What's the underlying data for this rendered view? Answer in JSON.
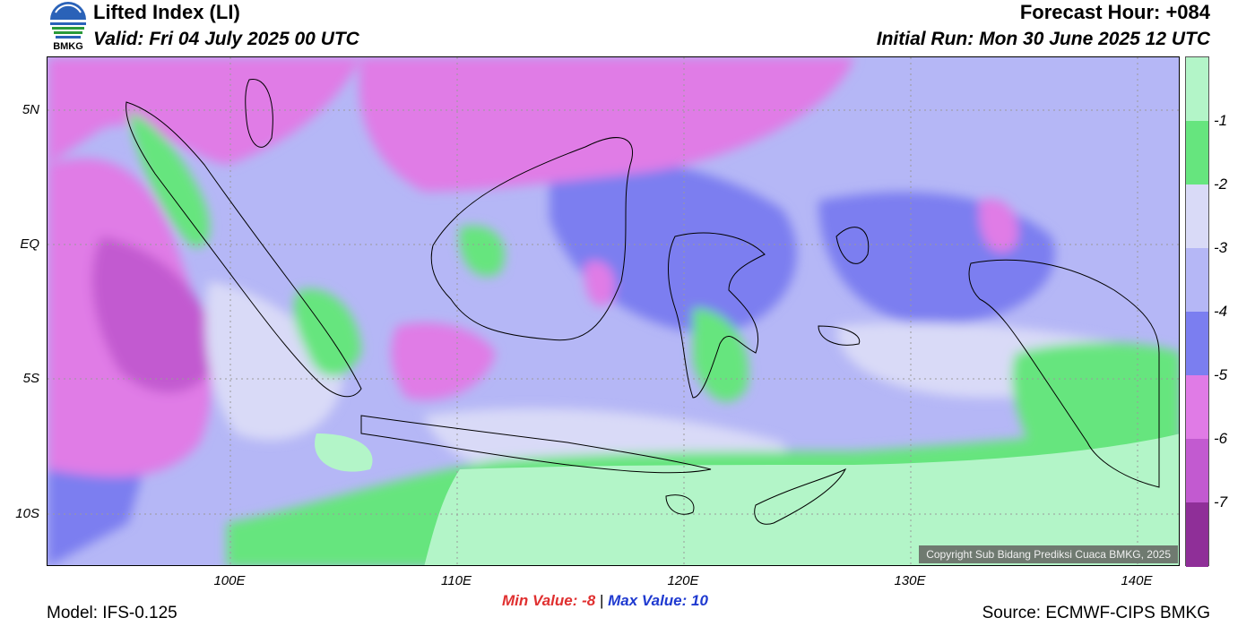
{
  "header": {
    "title": "Lifted Index (LI)",
    "valid": "Valid: Fri 04 July 2025 00 UTC",
    "forecast_hour": "Forecast Hour: +084",
    "initial_run": "Initial Run: Mon 30 June 2025 12 UTC",
    "logo_text": "BMKG"
  },
  "map": {
    "lat_labels": [
      "5N",
      "EQ",
      "5S",
      "10S"
    ],
    "lon_labels": [
      "100E",
      "110E",
      "120E",
      "130E",
      "140E"
    ],
    "copyright": "Copyright Sub Bidang Prediksi Cuaca BMKG, 2025"
  },
  "colorbar": {
    "labels": [
      "-1",
      "-2",
      "-3",
      "-4",
      "-5",
      "-6",
      "-7"
    ],
    "colors": [
      "#b3f5c8",
      "#66e57e",
      "#d9daf7",
      "#b5b7f6",
      "#7b7ef0",
      "#e07be6",
      "#c25ad0",
      "#8f2f98"
    ]
  },
  "footer": {
    "min_label": "Min Value:  -8",
    "separator": "|",
    "max_label": "Max Value:  10",
    "model": "Model: IFS-0.125",
    "source": "Source: ECMWF-CIPS BMKG"
  }
}
